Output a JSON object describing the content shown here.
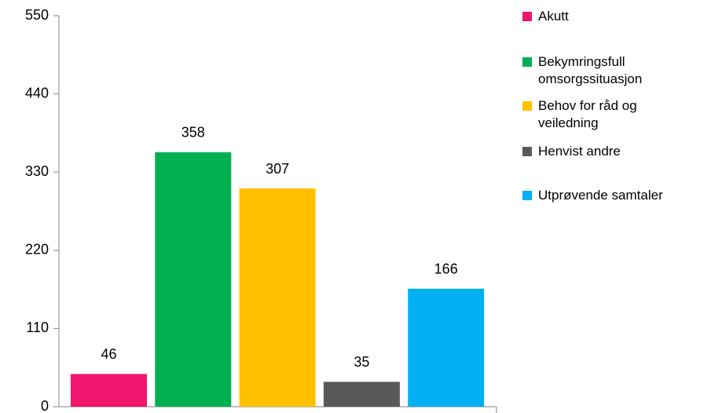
{
  "chart_data": {
    "type": "bar",
    "categories": [
      null
    ],
    "series": [
      {
        "name": "Akutt",
        "color": "#f0166e",
        "values": [
          46
        ]
      },
      {
        "name": "Bekymringsfull omsorgssituasjon",
        "color": "#00b050",
        "values": [
          358
        ]
      },
      {
        "name": "Behov for råd og veiledning",
        "color": "#ffc000",
        "values": [
          307
        ]
      },
      {
        "name": "Henvist andre",
        "color": "#595959",
        "values": [
          35
        ]
      },
      {
        "name": "Utprøvende samtaler",
        "color": "#00b0f0",
        "values": [
          166
        ]
      }
    ],
    "ylim": [
      0,
      550
    ],
    "yticks": [
      0,
      110,
      220,
      330,
      440,
      550
    ],
    "legend": "right"
  }
}
